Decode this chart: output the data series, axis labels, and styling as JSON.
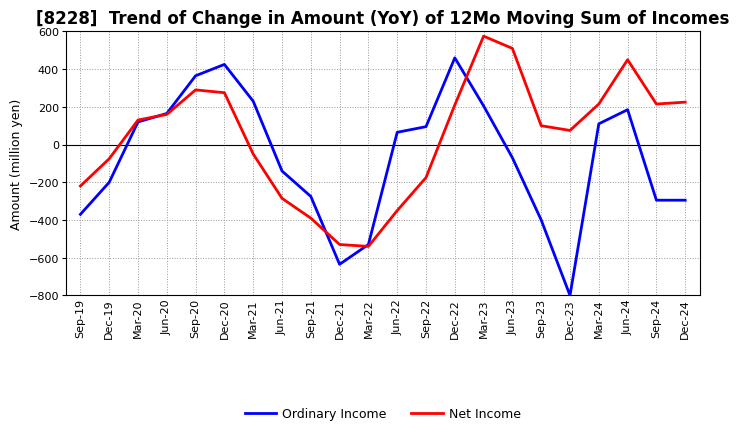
{
  "title": "[8228]  Trend of Change in Amount (YoY) of 12Mo Moving Sum of Incomes",
  "ylabel": "Amount (million yen)",
  "x_labels": [
    "Sep-19",
    "Dec-19",
    "Mar-20",
    "Jun-20",
    "Sep-20",
    "Dec-20",
    "Mar-21",
    "Jun-21",
    "Sep-21",
    "Dec-21",
    "Mar-22",
    "Jun-22",
    "Sep-22",
    "Dec-22",
    "Mar-23",
    "Jun-23",
    "Sep-23",
    "Dec-23",
    "Mar-24",
    "Jun-24",
    "Sep-24",
    "Dec-24"
  ],
  "ordinary_income": [
    -370,
    -200,
    120,
    165,
    365,
    425,
    230,
    -140,
    -275,
    -635,
    -530,
    65,
    95,
    460,
    205,
    -70,
    -400,
    -800,
    110,
    185,
    -295,
    -295
  ],
  "net_income": [
    -220,
    -75,
    130,
    160,
    290,
    275,
    -50,
    -285,
    -390,
    -530,
    -540,
    -350,
    -175,
    210,
    575,
    510,
    100,
    75,
    215,
    450,
    215,
    225
  ],
  "ordinary_income_color": "#0000ff",
  "net_income_color": "#ff0000",
  "ylim": [
    -800,
    600
  ],
  "yticks": [
    -800,
    -600,
    -400,
    -200,
    0,
    200,
    400,
    600
  ],
  "background_color": "#ffffff",
  "grid_color": "#aaaaaa",
  "title_fontsize": 12,
  "axis_label_fontsize": 9,
  "tick_fontsize": 8,
  "legend_labels": [
    "Ordinary Income",
    "Net Income"
  ],
  "line_width": 2.0
}
